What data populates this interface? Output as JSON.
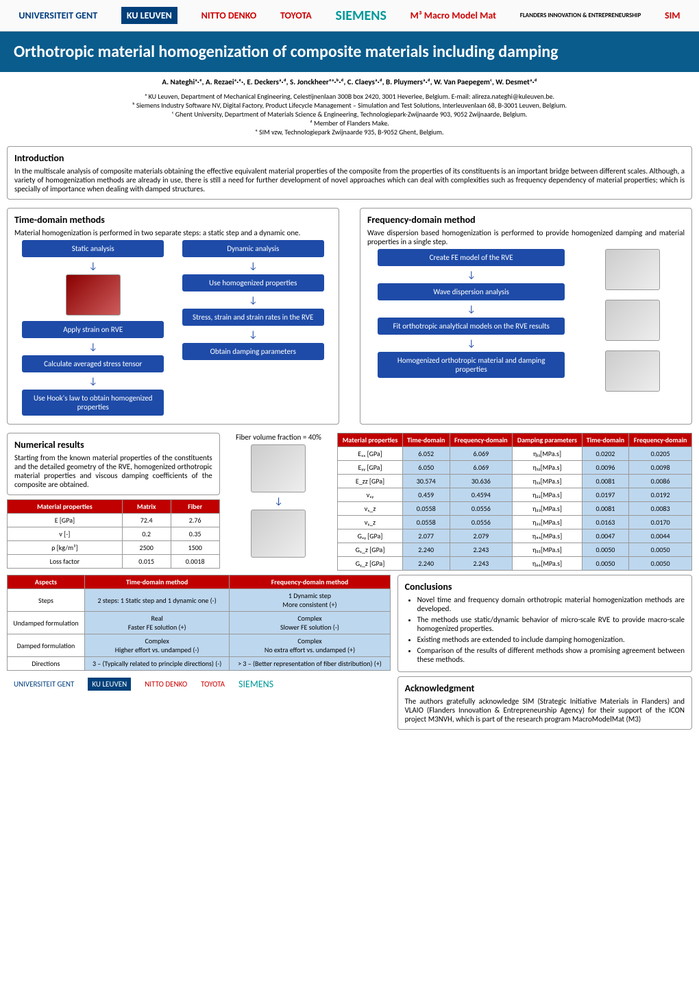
{
  "header_logos": [
    "UNIVERSITEIT GENT",
    "KU LEUVEN",
    "NITTO DENKO",
    "TOYOTA",
    "SIEMENS",
    "M³ Macro Model Mat",
    "FLANDERS INNOVATION & ENTREPRENEURSHIP",
    "SIM"
  ],
  "title": "Orthotropic material homogenization of composite materials including damping",
  "authors": "A. Nateghiᵃ·ᵉ, A. Rezaeiᵃ·ᵉ·, E. Deckersᵃ·ᵈ, S. Jonckheerᵉᵃ·ᵇ·ᵈ, C. Claeysᵃ·ᵈ, B. Pluymersᵃ·ᵈ, W. Van Paepegemᶜ, W. Desmetᵃ·ᵈ",
  "affiliations": [
    "ᵃ KU Leuven, Department of Mechanical Engineering, Celestijnenlaan 300B box 2420, 3001 Heverlee, Belgium. E-mail: alireza.nateghi@kuleuven.be.",
    "ᵇ Siemens Industry Software NV, Digital Factory, Product Lifecycle Management – Simulation and Test Solutions, Interleuvenlaan 68, B-3001 Leuven, Belgium.",
    "ᶜ Ghent University, Department of Materials Science & Engineering, Technologiepark-Zwijnaarde 903, 9052 Zwijnaarde, Belgium.",
    "ᵈ Member of Flanders Make.",
    "ᵉ SIM vzw, Technologiepark Zwijnaarde 935, B-9052 Ghent, Belgium."
  ],
  "intro": {
    "title": "Introduction",
    "body": "In the multiscale analysis of composite materials obtaining the effective equivalent material properties of the composite from the properties of its constituents is an important bridge between different scales. Although, a variety of homogenization methods are already in use, there is still a need for further development of novel approaches which can deal with complexities such as frequency dependency of material properties; which is specially of importance when dealing with damped structures."
  },
  "time_domain": {
    "title": "Time-domain methods",
    "body": "Material homogenization is performed in two separate steps: a static step and a dynamic one.",
    "static_label": "Static analysis",
    "dynamic_label": "Dynamic analysis",
    "static_steps": [
      "Apply strain on RVE",
      "Calculate averaged stress tensor",
      "Use Hook's law to obtain homogenized properties"
    ],
    "dynamic_steps": [
      "Use homogenized properties",
      "Stress, strain and strain rates in the RVE",
      "Obtain damping parameters"
    ]
  },
  "freq_domain": {
    "title": "Frequency-domain method",
    "body": "Wave dispersion based homogenization is performed to provide homogenized damping and material properties in a single step.",
    "steps": [
      "Create FE model of the RVE",
      "Wave dispersion analysis",
      "Fit orthotropic analytical models on the RVE results",
      "Homogenized orthotropic material and damping properties"
    ]
  },
  "numerical": {
    "title": "Numerical results",
    "body": "Starting from the known material properties of the constituents and the detailed geometry of the RVE, homogenized orthotropic material properties and viscous damping coefficients of the composite are obtained.",
    "fiber_vol": "Fiber volume fraction = 40%"
  },
  "props_table": {
    "headers": [
      "Material properties",
      "Matrix",
      "Fiber"
    ],
    "rows": [
      [
        "E [GPa]",
        "72.4",
        "2.76"
      ],
      [
        "ν [-]",
        "0.2",
        "0.35"
      ],
      [
        "ρ [kg/m³]",
        "2500",
        "1500"
      ],
      [
        "Loss factor",
        "0.015",
        "0.0018"
      ]
    ]
  },
  "results_table": {
    "headers_left": [
      "Material properties",
      "Time-domain",
      "Frequency-domain"
    ],
    "headers_right": [
      "Damping parameters",
      "Time-domain",
      "Frequency-domain"
    ],
    "rows_left": [
      [
        "Eₓₓ [GPa]",
        "6.052",
        "6.069"
      ],
      [
        "Eᵧᵧ [GPa]",
        "6.050",
        "6.069"
      ],
      [
        "E_zz [GPa]",
        "30.574",
        "30.636"
      ],
      [
        "νₓᵧ",
        "0.459",
        "0.4594"
      ],
      [
        "νₓ_z",
        "0.0558",
        "0.0556"
      ],
      [
        "νᵧ_z",
        "0.0558",
        "0.0556"
      ],
      [
        "Gₓᵧ [GPa]",
        "2.077",
        "2.079"
      ],
      [
        "Gₓ_z [GPa]",
        "2.240",
        "2.243"
      ],
      [
        "Gᵧ_z [GPa]",
        "2.240",
        "2.243"
      ]
    ],
    "rows_right": [
      [
        "η₁₁[MPa.s]",
        "0.0202",
        "0.0205"
      ],
      [
        "η₁₂[MPa.s]",
        "0.0096",
        "0.0098"
      ],
      [
        "η₁₃[MPa.s]",
        "0.0081",
        "0.0086"
      ],
      [
        "η₂₂[MPa.s]",
        "0.0197",
        "0.0192"
      ],
      [
        "η₂₃[MPa.s]",
        "0.0081",
        "0.0083"
      ],
      [
        "η₃₃[MPa.s]",
        "0.0163",
        "0.0170"
      ],
      [
        "η₄₄[MPa.s]",
        "0.0047",
        "0.0044"
      ],
      [
        "η₅₅[MPa.s]",
        "0.0050",
        "0.0050"
      ],
      [
        "η₆₆[MPa.s]",
        "0.0050",
        "0.0050"
      ]
    ]
  },
  "aspects_table": {
    "headers": [
      "Aspects",
      "Time-domain method",
      "Frequency-domain method"
    ],
    "rows": [
      [
        "Steps",
        "2 steps: 1 Static step and 1 dynamic one (-)",
        "1 Dynamic step\nMore consistent (+)"
      ],
      [
        "Undamped formulation",
        "Real\nFaster FE solution (+)",
        "Complex\nSlower FE solution (-)"
      ],
      [
        "Damped formulation",
        "Complex\nHigher effort vs. undamped (-)",
        "Complex\nNo extra effort vs. undamped (+)"
      ],
      [
        "Directions",
        "3 – (Typically related to principle directions) (-)",
        "> 3 – (Better representation of fiber distribution) (+)"
      ]
    ]
  },
  "conclusions": {
    "title": "Conclusions",
    "items": [
      "Novel time and frequency domain orthotropic material homogenization methods are developed.",
      "The methods use static/dynamic behavior of micro-scale RVE to provide macro-scale homogenized properties.",
      "Existing methods are extended to include damping homogenization.",
      "Comparison of the results of different methods show a promising agreement between these methods."
    ]
  },
  "ack": {
    "title": "Acknowledgment",
    "body": "The authors gratefully acknowledge SIM (Strategic Initiative Materials in Flanders) and VLAIO (Flanders Innovation & Entrepreneurship Agency) for their support of the ICON project M3NVH, which is part of the research program MacroModelMat (M3)"
  },
  "footer_logos": [
    "UNIVERSITEIT GENT",
    "KU LEUVEN",
    "NITTO DENKO",
    "TOYOTA",
    "SIEMENS"
  ],
  "colors": {
    "title_bg": "#0a5c8c",
    "flow_bg": "#1e4ba8",
    "red_header": "#c00000",
    "blue_cell": "#bdd7ee"
  }
}
